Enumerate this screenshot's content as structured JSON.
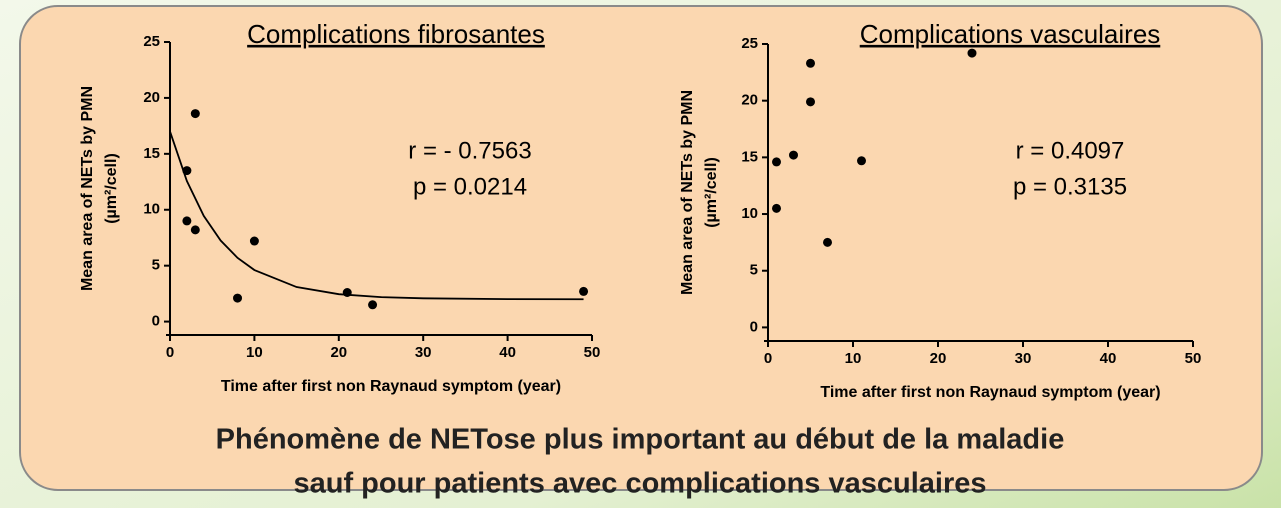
{
  "chart_data": [
    {
      "type": "scatter",
      "title": "Complications fibrosantes",
      "xlabel": "Time after first non Raynaud symptom (year)",
      "ylabel": [
        "Mean area of NETs by PMN",
        "(µm²/cell)"
      ],
      "x": [
        2,
        3,
        2,
        3,
        8,
        10,
        21,
        24,
        49
      ],
      "values": [
        13.5,
        18.6,
        9.0,
        8.2,
        2.1,
        7.2,
        2.6,
        1.5,
        2.7
      ],
      "color": "#000000",
      "curve": {
        "x": [
          0,
          2,
          4,
          6,
          8,
          10,
          15,
          20,
          25,
          30,
          40,
          49
        ],
        "values": [
          17,
          12.57,
          9.45,
          7.25,
          5.7,
          4.61,
          3.09,
          2.45,
          2.19,
          2.08,
          2.01,
          2.0
        ]
      },
      "annotations": [
        "r = - 0.7563",
        "p = 0.0214"
      ],
      "xlim": [
        0,
        50
      ],
      "ylim": [
        -1.2,
        25
      ],
      "xticks": [
        0,
        10,
        20,
        30,
        40,
        50
      ],
      "yticks": [
        0,
        5,
        10,
        15,
        20,
        25
      ]
    },
    {
      "type": "scatter",
      "title": "Complications vasculaires",
      "xlabel": "Time after first non Raynaud symptom (year)",
      "ylabel": [
        "Mean area of NETs by PMN",
        "(µm²/cell)"
      ],
      "x": [
        1,
        1,
        3,
        5,
        5,
        7,
        11,
        24
      ],
      "values": [
        14.6,
        10.5,
        15.2,
        23.3,
        19.9,
        7.5,
        14.7,
        24.2
      ],
      "color": "#000000",
      "annotations": [
        "r = 0.4097",
        "p = 0.3135"
      ],
      "xlim": [
        0,
        50
      ],
      "ylim": [
        -1.2,
        25
      ],
      "xticks": [
        0,
        10,
        20,
        30,
        40,
        50
      ],
      "yticks": [
        0,
        5,
        10,
        15,
        20,
        25
      ]
    }
  ],
  "caption": [
    "Phénomène de NETose plus important au début de la maladie",
    "sauf pour patients avec complications vasculaires"
  ]
}
